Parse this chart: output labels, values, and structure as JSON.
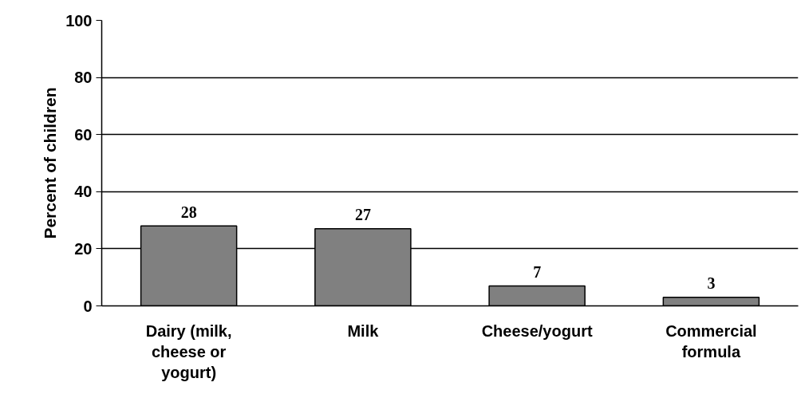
{
  "chart_data": {
    "type": "bar",
    "ylabel": "Percent of children",
    "categories": [
      "Dairy (milk, cheese or yogurt)",
      "Milk",
      "Cheese/yogurt",
      "Commercial formula"
    ],
    "values": [
      28,
      27,
      7,
      3
    ],
    "color": "#808080",
    "ylim": [
      0,
      100
    ],
    "yticks": [
      0,
      20,
      40,
      60,
      80,
      100
    ],
    "grid": "y",
    "data_labels": true
  }
}
